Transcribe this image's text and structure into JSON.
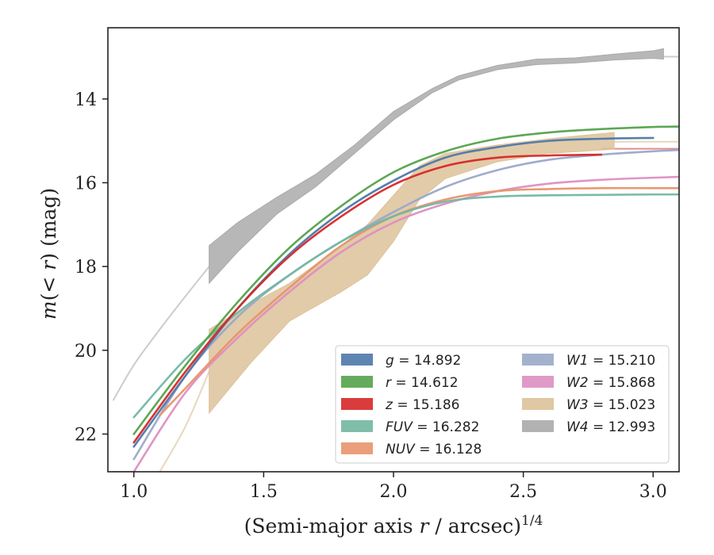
{
  "chart_data": {
    "type": "line",
    "xlabel": "(Semi-major axis r / arcsec)^1/4",
    "ylabel": "m(< r) (mag)",
    "xlim": [
      0.9,
      3.1
    ],
    "ylim": [
      22.9,
      12.3
    ],
    "y_inverted": true,
    "grid": false,
    "legend_position": "lower-right",
    "x_ticks": [
      1.0,
      1.5,
      2.0,
      2.5,
      3.0
    ],
    "x_tick_labels": [
      "1.0",
      "1.5",
      "2.0",
      "2.5",
      "3.0"
    ],
    "y_ticks": [
      14,
      16,
      18,
      20,
      22
    ],
    "y_tick_labels": [
      "14",
      "16",
      "18",
      "20",
      "22"
    ],
    "series": [
      {
        "name": "g",
        "legend_label": "g = 14.892",
        "total_mag": 14.892,
        "color": "#4c78a8",
        "x": [
          1.0,
          1.2,
          1.4,
          1.6,
          1.8,
          2.0,
          2.2,
          2.4,
          2.6,
          2.8,
          3.0
        ],
        "y": [
          22.3,
          20.6,
          19.0,
          17.7,
          16.7,
          15.95,
          15.4,
          15.15,
          15.0,
          14.95,
          14.93
        ]
      },
      {
        "name": "r",
        "legend_label": "r = 14.612",
        "total_mag": 14.612,
        "color": "#54a24b",
        "x": [
          1.0,
          1.2,
          1.4,
          1.6,
          1.8,
          2.0,
          2.2,
          2.4,
          2.6,
          2.8,
          3.0,
          3.1
        ],
        "y": [
          22.0,
          20.35,
          18.85,
          17.55,
          16.55,
          15.75,
          15.25,
          14.95,
          14.8,
          14.72,
          14.67,
          14.66
        ]
      },
      {
        "name": "z",
        "legend_label": "z = 15.186",
        "total_mag": 15.186,
        "color": "#d62728",
        "x": [
          1.0,
          1.2,
          1.4,
          1.6,
          1.8,
          2.0,
          2.2,
          2.4,
          2.6,
          2.8
        ],
        "y": [
          22.2,
          20.5,
          19.0,
          17.75,
          16.8,
          16.05,
          15.6,
          15.4,
          15.35,
          15.33
        ]
      },
      {
        "name": "FUV",
        "legend_label": "FUV = 16.282",
        "total_mag": 16.282,
        "color": "#72b7a1",
        "x": [
          1.0,
          1.2,
          1.4,
          1.6,
          1.8,
          2.0,
          2.2,
          2.4,
          2.6,
          2.8,
          3.0,
          3.1
        ],
        "y": [
          21.6,
          20.2,
          19.1,
          18.2,
          17.4,
          16.8,
          16.45,
          16.33,
          16.3,
          16.29,
          16.28,
          16.28
        ]
      },
      {
        "name": "NUV",
        "legend_label": "NUV = 16.128",
        "total_mag": 16.128,
        "color": "#e8946b",
        "x": [
          1.1,
          1.2,
          1.4,
          1.6,
          1.8,
          2.0,
          2.2,
          2.4,
          2.6,
          2.8,
          3.0,
          3.1
        ],
        "y": [
          21.55,
          20.9,
          19.6,
          18.5,
          17.5,
          16.8,
          16.4,
          16.2,
          16.15,
          16.13,
          16.13,
          16.13
        ]
      },
      {
        "name": "W1",
        "legend_label": "W1 = 15.210",
        "total_mag": 15.21,
        "color": "#9aa8c8",
        "x": [
          1.0,
          1.2,
          1.4,
          1.6,
          1.8,
          2.0,
          2.2,
          2.4,
          2.6,
          2.8,
          3.0,
          3.1
        ],
        "y": [
          22.6,
          20.6,
          19.2,
          18.2,
          17.4,
          16.7,
          16.1,
          15.7,
          15.45,
          15.33,
          15.25,
          15.22
        ]
      },
      {
        "name": "W2",
        "legend_label": "W2 = 15.868",
        "total_mag": 15.868,
        "color": "#dd8fc0",
        "x": [
          1.0,
          1.2,
          1.4,
          1.6,
          1.8,
          2.0,
          2.2,
          2.4,
          2.6,
          2.8,
          3.0,
          3.1
        ],
        "y": [
          22.9,
          21.0,
          19.7,
          18.6,
          17.65,
          16.95,
          16.5,
          16.2,
          16.02,
          15.93,
          15.88,
          15.86
        ]
      },
      {
        "name": "W3",
        "legend_label": "W3 = 15.023",
        "total_mag": 15.023,
        "color": "#ddc29a",
        "x": [
          1.29,
          1.45,
          1.6,
          1.8,
          1.9,
          2.0,
          2.1,
          2.2,
          2.4,
          2.6,
          2.85
        ],
        "y": [
          20.5,
          19.5,
          18.8,
          18.05,
          17.6,
          16.9,
          16.1,
          15.65,
          15.35,
          15.15,
          15.02
        ],
        "y_upper": [
          19.5,
          18.9,
          18.4,
          17.5,
          17.0,
          16.3,
          15.6,
          15.3,
          15.1,
          14.95,
          14.8
        ],
        "y_lower": [
          21.5,
          20.3,
          19.3,
          18.6,
          18.2,
          17.4,
          16.4,
          15.9,
          15.5,
          15.3,
          15.2
        ]
      },
      {
        "name": "W4",
        "legend_label": "W4 = 12.993",
        "total_mag": 12.993,
        "color": "#aaaaaa",
        "x": [
          1.29,
          1.4,
          1.55,
          1.7,
          1.85,
          2.0,
          2.15,
          2.25,
          2.4,
          2.55,
          2.7,
          2.85,
          3.0,
          3.04
        ],
        "y": [
          17.95,
          17.3,
          16.55,
          15.95,
          15.2,
          14.4,
          13.8,
          13.5,
          13.25,
          13.12,
          13.08,
          13.0,
          12.94,
          12.92
        ],
        "y_upper": [
          17.5,
          16.95,
          16.35,
          15.8,
          15.1,
          14.3,
          13.75,
          13.45,
          13.2,
          13.05,
          13.02,
          12.93,
          12.85,
          12.8
        ],
        "y_lower": [
          18.4,
          17.65,
          16.75,
          16.1,
          15.3,
          14.5,
          13.85,
          13.55,
          13.3,
          13.18,
          13.14,
          13.07,
          13.03,
          13.05
        ]
      }
    ],
    "faint_extensions": [
      {
        "name": "W4",
        "color": "#cccccc",
        "x": [
          0.92,
          1.0,
          1.1,
          1.2,
          1.29
        ],
        "y": [
          21.2,
          20.35,
          19.5,
          18.7,
          18.0
        ]
      },
      {
        "name": "W4",
        "color": "#cccccc",
        "x": [
          3.04,
          3.1
        ],
        "y": [
          12.99,
          12.99
        ]
      },
      {
        "name": "W3",
        "color": "#e8d7bd",
        "x": [
          1.1,
          1.2,
          1.29
        ],
        "y": [
          22.9,
          21.8,
          20.5
        ]
      },
      {
        "name": "W3",
        "color": "#e8d7bd",
        "x": [
          2.85,
          3.1
        ],
        "y": [
          15.02,
          15.02
        ]
      },
      {
        "name": "W2",
        "color": "#efc2df",
        "x": [
          0.92,
          1.0
        ],
        "y": [
          22.9,
          22.9
        ]
      },
      {
        "name": "z",
        "color": "#e38e8f",
        "x": [
          2.8,
          3.1
        ],
        "y": [
          15.19,
          15.19
        ]
      }
    ]
  }
}
